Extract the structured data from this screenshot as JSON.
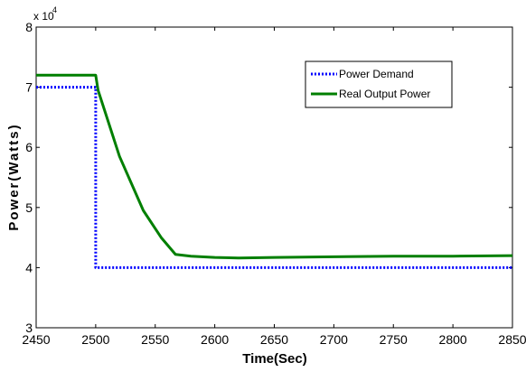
{
  "chart_data": {
    "type": "line",
    "xlabel": "Time(Sec)",
    "ylabel": "Power(Watts)",
    "y_multiplier_base": "x 10",
    "y_multiplier_exp": "4",
    "xlim": [
      2450,
      2850
    ],
    "ylim": [
      3,
      8
    ],
    "x_ticks": [
      "2450",
      "2500",
      "2550",
      "2600",
      "2650",
      "2700",
      "2750",
      "2800",
      "2850"
    ],
    "y_ticks": [
      "3",
      "4",
      "5",
      "6",
      "7",
      "8"
    ],
    "grid": false,
    "legend_position": "top-right",
    "series": [
      {
        "name": "Power Demand",
        "color": "#0000ff",
        "style": "dotted",
        "x": [
          2450,
          2500,
          2500,
          2850
        ],
        "y": [
          7.0,
          7.0,
          4.0,
          4.0
        ]
      },
      {
        "name": "Real Output Power",
        "color": "#007f00",
        "style": "solid",
        "x": [
          2450,
          2500,
          2502,
          2520,
          2540,
          2555,
          2567,
          2580,
          2600,
          2620,
          2650,
          2700,
          2750,
          2800,
          2850
        ],
        "y": [
          7.2,
          7.2,
          6.95,
          5.85,
          4.95,
          4.5,
          4.22,
          4.19,
          4.17,
          4.16,
          4.17,
          4.18,
          4.19,
          4.19,
          4.2
        ]
      }
    ]
  }
}
